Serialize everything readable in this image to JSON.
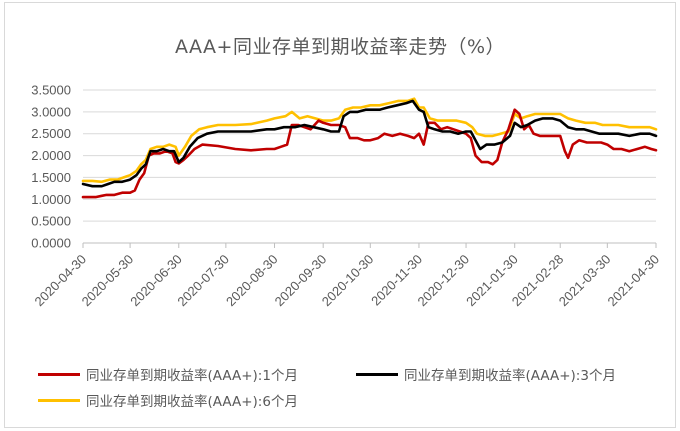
{
  "chart_data": {
    "type": "line",
    "title": "AAA+同业存单到期收益率走势（%）",
    "xlabel": "",
    "ylabel": "",
    "ylim": [
      0,
      3.5
    ],
    "yticks": [
      "0.0000",
      "0.5000",
      "1.0000",
      "1.5000",
      "2.0000",
      "2.5000",
      "3.0000",
      "3.5000"
    ],
    "x_tick_labels": [
      "2020-04-30",
      "2020-05-30",
      "2020-06-30",
      "2020-07-30",
      "2020-08-30",
      "2020-09-30",
      "2020-10-30",
      "2020-11-30",
      "2020-12-30",
      "2021-01-30",
      "2021-02-28",
      "2021-03-30",
      "2021-04-30"
    ],
    "legend_position": "bottom",
    "grid": "horizontal",
    "series": [
      {
        "name": "同业存单到期收益率(AAA+):1个月",
        "color": "#c00000",
        "points": [
          [
            "2020-04-30",
            1.05
          ],
          [
            "2020-05-08",
            1.05
          ],
          [
            "2020-05-12",
            1.08
          ],
          [
            "2020-05-15",
            1.1
          ],
          [
            "2020-05-20",
            1.1
          ],
          [
            "2020-05-25",
            1.15
          ],
          [
            "2020-05-30",
            1.15
          ],
          [
            "2020-06-02",
            1.2
          ],
          [
            "2020-06-05",
            1.45
          ],
          [
            "2020-06-08",
            1.6
          ],
          [
            "2020-06-11",
            2.0
          ],
          [
            "2020-06-14",
            2.05
          ],
          [
            "2020-06-18",
            2.05
          ],
          [
            "2020-06-22",
            2.1
          ],
          [
            "2020-06-26",
            2.05
          ],
          [
            "2020-06-28",
            1.85
          ],
          [
            "2020-06-30",
            1.82
          ],
          [
            "2020-07-03",
            1.9
          ],
          [
            "2020-07-06",
            2.0
          ],
          [
            "2020-07-10",
            2.15
          ],
          [
            "2020-07-15",
            2.25
          ],
          [
            "2020-07-25",
            2.22
          ],
          [
            "2020-08-05",
            2.15
          ],
          [
            "2020-08-15",
            2.12
          ],
          [
            "2020-08-25",
            2.15
          ],
          [
            "2020-08-30",
            2.15
          ],
          [
            "2020-09-03",
            2.2
          ],
          [
            "2020-09-07",
            2.25
          ],
          [
            "2020-09-10",
            2.7
          ],
          [
            "2020-09-14",
            2.7
          ],
          [
            "2020-09-18",
            2.65
          ],
          [
            "2020-09-22",
            2.6
          ],
          [
            "2020-09-27",
            2.8
          ],
          [
            "2020-09-30",
            2.75
          ],
          [
            "2020-10-05",
            2.7
          ],
          [
            "2020-10-10",
            2.7
          ],
          [
            "2020-10-14",
            2.65
          ],
          [
            "2020-10-17",
            2.4
          ],
          [
            "2020-10-22",
            2.4
          ],
          [
            "2020-10-26",
            2.35
          ],
          [
            "2020-10-30",
            2.35
          ],
          [
            "2020-11-04",
            2.4
          ],
          [
            "2020-11-08",
            2.5
          ],
          [
            "2020-11-13",
            2.45
          ],
          [
            "2020-11-18",
            2.5
          ],
          [
            "2020-11-23",
            2.45
          ],
          [
            "2020-11-27",
            2.4
          ],
          [
            "2020-11-30",
            2.5
          ],
          [
            "2020-12-03",
            2.25
          ],
          [
            "2020-12-06",
            2.75
          ],
          [
            "2020-12-10",
            2.75
          ],
          [
            "2020-12-14",
            2.6
          ],
          [
            "2020-12-18",
            2.65
          ],
          [
            "2020-12-22",
            2.6
          ],
          [
            "2020-12-26",
            2.55
          ],
          [
            "2020-12-30",
            2.5
          ],
          [
            "2021-01-02",
            2.4
          ],
          [
            "2021-01-05",
            2.0
          ],
          [
            "2021-01-09",
            1.85
          ],
          [
            "2021-01-13",
            1.85
          ],
          [
            "2021-01-16",
            1.8
          ],
          [
            "2021-01-19",
            1.9
          ],
          [
            "2021-01-22",
            2.3
          ],
          [
            "2021-01-26",
            2.6
          ],
          [
            "2021-01-30",
            3.05
          ],
          [
            "2021-02-02",
            2.95
          ],
          [
            "2021-02-05",
            2.6
          ],
          [
            "2021-02-08",
            2.7
          ],
          [
            "2021-02-11",
            2.5
          ],
          [
            "2021-02-15",
            2.45
          ],
          [
            "2021-02-20",
            2.45
          ],
          [
            "2021-02-24",
            2.45
          ],
          [
            "2021-02-28",
            2.45
          ],
          [
            "2021-03-03",
            2.1
          ],
          [
            "2021-03-05",
            1.95
          ],
          [
            "2021-03-08",
            2.25
          ],
          [
            "2021-03-12",
            2.35
          ],
          [
            "2021-03-17",
            2.3
          ],
          [
            "2021-03-22",
            2.3
          ],
          [
            "2021-03-26",
            2.3
          ],
          [
            "2021-03-30",
            2.25
          ],
          [
            "2021-04-03",
            2.15
          ],
          [
            "2021-04-08",
            2.15
          ],
          [
            "2021-04-13",
            2.1
          ],
          [
            "2021-04-18",
            2.15
          ],
          [
            "2021-04-23",
            2.2
          ],
          [
            "2021-04-27",
            2.15
          ],
          [
            "2021-04-30",
            2.12
          ]
        ]
      },
      {
        "name": "同业存单到期收益率(AAA+):3个月",
        "color": "#000000",
        "points": [
          [
            "2020-04-30",
            1.35
          ],
          [
            "2020-05-06",
            1.3
          ],
          [
            "2020-05-12",
            1.3
          ],
          [
            "2020-05-16",
            1.35
          ],
          [
            "2020-05-20",
            1.4
          ],
          [
            "2020-05-25",
            1.4
          ],
          [
            "2020-05-30",
            1.45
          ],
          [
            "2020-06-03",
            1.55
          ],
          [
            "2020-06-06",
            1.7
          ],
          [
            "2020-06-09",
            1.8
          ],
          [
            "2020-06-12",
            2.1
          ],
          [
            "2020-06-16",
            2.1
          ],
          [
            "2020-06-20",
            2.15
          ],
          [
            "2020-06-24",
            2.1
          ],
          [
            "2020-06-27",
            2.1
          ],
          [
            "2020-06-30",
            1.85
          ],
          [
            "2020-07-03",
            1.95
          ],
          [
            "2020-07-07",
            2.2
          ],
          [
            "2020-07-12",
            2.4
          ],
          [
            "2020-07-18",
            2.5
          ],
          [
            "2020-07-25",
            2.55
          ],
          [
            "2020-08-05",
            2.55
          ],
          [
            "2020-08-15",
            2.55
          ],
          [
            "2020-08-25",
            2.6
          ],
          [
            "2020-08-30",
            2.6
          ],
          [
            "2020-09-05",
            2.65
          ],
          [
            "2020-09-12",
            2.65
          ],
          [
            "2020-09-18",
            2.7
          ],
          [
            "2020-09-24",
            2.65
          ],
          [
            "2020-09-30",
            2.6
          ],
          [
            "2020-10-05",
            2.55
          ],
          [
            "2020-10-10",
            2.55
          ],
          [
            "2020-10-13",
            2.9
          ],
          [
            "2020-10-17",
            3.0
          ],
          [
            "2020-10-22",
            3.0
          ],
          [
            "2020-10-27",
            3.05
          ],
          [
            "2020-10-30",
            3.05
          ],
          [
            "2020-11-05",
            3.05
          ],
          [
            "2020-11-10",
            3.1
          ],
          [
            "2020-11-16",
            3.15
          ],
          [
            "2020-11-22",
            3.2
          ],
          [
            "2020-11-26",
            3.25
          ],
          [
            "2020-11-30",
            3.05
          ],
          [
            "2020-12-03",
            3.0
          ],
          [
            "2020-12-06",
            2.65
          ],
          [
            "2020-12-10",
            2.6
          ],
          [
            "2020-12-15",
            2.55
          ],
          [
            "2020-12-20",
            2.55
          ],
          [
            "2020-12-25",
            2.5
          ],
          [
            "2020-12-30",
            2.55
          ],
          [
            "2021-01-02",
            2.55
          ],
          [
            "2021-01-05",
            2.35
          ],
          [
            "2021-01-08",
            2.15
          ],
          [
            "2021-01-12",
            2.25
          ],
          [
            "2021-01-17",
            2.25
          ],
          [
            "2021-01-22",
            2.3
          ],
          [
            "2021-01-27",
            2.45
          ],
          [
            "2021-01-30",
            2.75
          ],
          [
            "2021-02-03",
            2.65
          ],
          [
            "2021-02-07",
            2.7
          ],
          [
            "2021-02-12",
            2.8
          ],
          [
            "2021-02-17",
            2.85
          ],
          [
            "2021-02-23",
            2.85
          ],
          [
            "2021-02-28",
            2.8
          ],
          [
            "2021-03-05",
            2.65
          ],
          [
            "2021-03-10",
            2.6
          ],
          [
            "2021-03-15",
            2.6
          ],
          [
            "2021-03-20",
            2.55
          ],
          [
            "2021-03-25",
            2.5
          ],
          [
            "2021-03-30",
            2.5
          ],
          [
            "2021-04-06",
            2.5
          ],
          [
            "2021-04-13",
            2.45
          ],
          [
            "2021-04-20",
            2.5
          ],
          [
            "2021-04-26",
            2.5
          ],
          [
            "2021-04-30",
            2.45
          ]
        ]
      },
      {
        "name": "同业存单到期收益率(AAA+):6个月",
        "color": "#ffc000",
        "points": [
          [
            "2020-04-30",
            1.42
          ],
          [
            "2020-05-06",
            1.42
          ],
          [
            "2020-05-12",
            1.4
          ],
          [
            "2020-05-17",
            1.45
          ],
          [
            "2020-05-22",
            1.45
          ],
          [
            "2020-05-26",
            1.5
          ],
          [
            "2020-05-30",
            1.55
          ],
          [
            "2020-06-03",
            1.65
          ],
          [
            "2020-06-06",
            1.8
          ],
          [
            "2020-06-09",
            1.9
          ],
          [
            "2020-06-12",
            2.15
          ],
          [
            "2020-06-16",
            2.2
          ],
          [
            "2020-06-20",
            2.2
          ],
          [
            "2020-06-24",
            2.25
          ],
          [
            "2020-06-28",
            2.2
          ],
          [
            "2020-06-30",
            2.0
          ],
          [
            "2020-07-04",
            2.2
          ],
          [
            "2020-07-08",
            2.45
          ],
          [
            "2020-07-13",
            2.6
          ],
          [
            "2020-07-18",
            2.65
          ],
          [
            "2020-07-25",
            2.7
          ],
          [
            "2020-08-05",
            2.7
          ],
          [
            "2020-08-15",
            2.72
          ],
          [
            "2020-08-25",
            2.8
          ],
          [
            "2020-08-30",
            2.85
          ],
          [
            "2020-09-06",
            2.9
          ],
          [
            "2020-09-10",
            3.0
          ],
          [
            "2020-09-15",
            2.85
          ],
          [
            "2020-09-20",
            2.9
          ],
          [
            "2020-09-25",
            2.85
          ],
          [
            "2020-09-30",
            2.8
          ],
          [
            "2020-10-05",
            2.8
          ],
          [
            "2020-10-10",
            2.85
          ],
          [
            "2020-10-14",
            3.05
          ],
          [
            "2020-10-19",
            3.1
          ],
          [
            "2020-10-24",
            3.1
          ],
          [
            "2020-10-30",
            3.15
          ],
          [
            "2020-11-05",
            3.15
          ],
          [
            "2020-11-11",
            3.2
          ],
          [
            "2020-11-17",
            3.25
          ],
          [
            "2020-11-23",
            3.25
          ],
          [
            "2020-11-27",
            3.3
          ],
          [
            "2020-11-30",
            3.1
          ],
          [
            "2020-12-03",
            3.1
          ],
          [
            "2020-12-07",
            2.85
          ],
          [
            "2020-12-12",
            2.8
          ],
          [
            "2020-12-18",
            2.8
          ],
          [
            "2020-12-24",
            2.8
          ],
          [
            "2020-12-30",
            2.75
          ],
          [
            "2021-01-03",
            2.65
          ],
          [
            "2021-01-06",
            2.5
          ],
          [
            "2021-01-11",
            2.45
          ],
          [
            "2021-01-16",
            2.45
          ],
          [
            "2021-01-21",
            2.5
          ],
          [
            "2021-01-26",
            2.55
          ],
          [
            "2021-01-30",
            2.95
          ],
          [
            "2021-02-03",
            2.85
          ],
          [
            "2021-02-07",
            2.9
          ],
          [
            "2021-02-12",
            2.95
          ],
          [
            "2021-02-18",
            2.95
          ],
          [
            "2021-02-23",
            2.95
          ],
          [
            "2021-02-28",
            2.95
          ],
          [
            "2021-03-05",
            2.85
          ],
          [
            "2021-03-10",
            2.8
          ],
          [
            "2021-03-16",
            2.75
          ],
          [
            "2021-03-22",
            2.75
          ],
          [
            "2021-03-27",
            2.7
          ],
          [
            "2021-03-30",
            2.7
          ],
          [
            "2021-04-06",
            2.7
          ],
          [
            "2021-04-13",
            2.65
          ],
          [
            "2021-04-20",
            2.65
          ],
          [
            "2021-04-26",
            2.65
          ],
          [
            "2021-04-30",
            2.6
          ]
        ]
      }
    ]
  }
}
